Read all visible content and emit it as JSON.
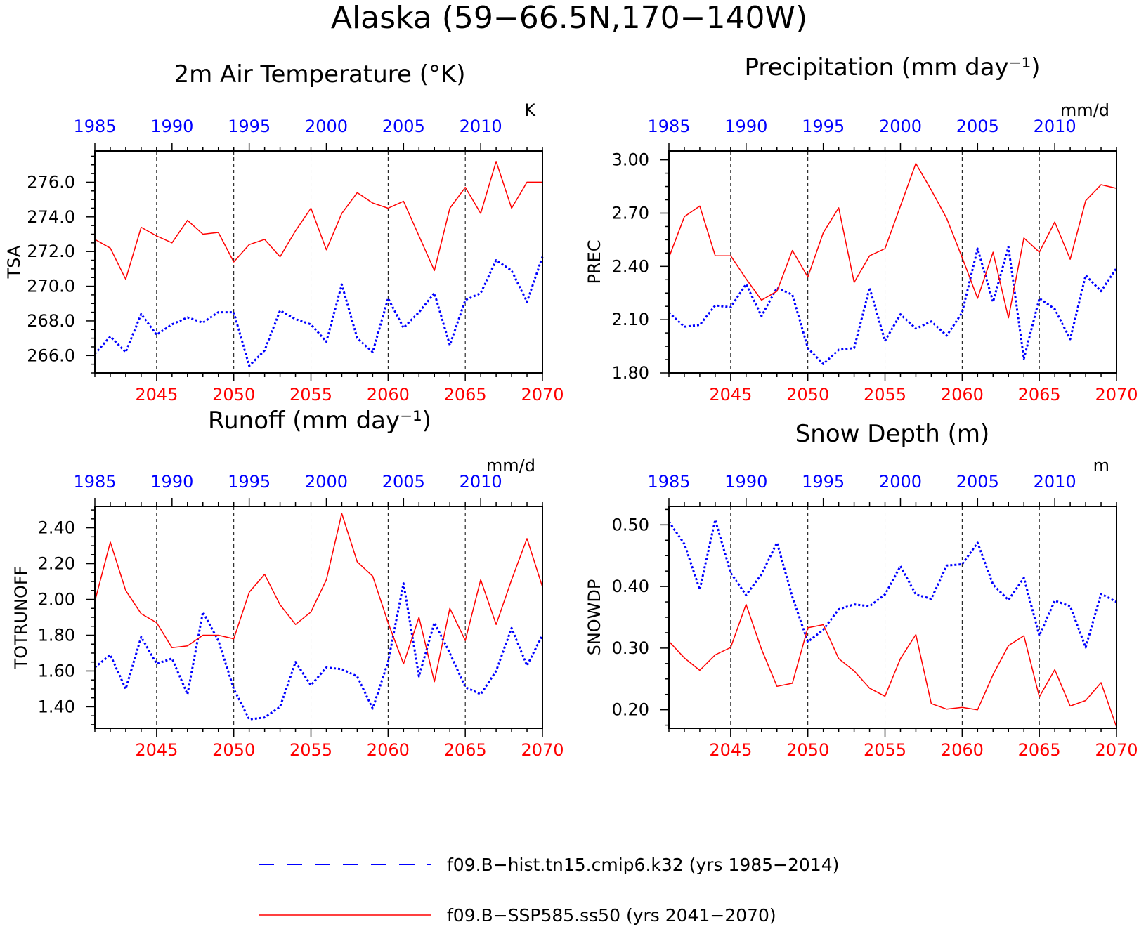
{
  "figure_title": "Alaska (59−66.5N,170−140W)",
  "colors": {
    "hist": "#0000ff",
    "ssp": "#ff0000",
    "frame": "#000000",
    "grid": "#000000"
  },
  "legend": {
    "hist_label": "f09.B−hist.tn15.cmip6.k32 (yrs 1985−2014)",
    "ssp_label": "f09.B−SSP585.ss50 (yrs 2041−2070)"
  },
  "chart_data": [
    {
      "type": "line",
      "title": "2m Air Temperature (°K)",
      "ylabel": "TSA",
      "units": "K",
      "x_bottom": {
        "range": [
          2041,
          2070
        ],
        "ticks": [
          2045,
          2050,
          2055,
          2060,
          2065,
          2070
        ],
        "labels": [
          "2045",
          "2050",
          "2055",
          "2060",
          "2065",
          "2070"
        ]
      },
      "x_top": {
        "range": [
          1985,
          2014
        ],
        "ticks": [
          1985,
          1990,
          1995,
          2000,
          2005,
          2010
        ],
        "labels": [
          "1985",
          "1990",
          "1995",
          "2000",
          "2005",
          "2010"
        ]
      },
      "ylim": [
        265.0,
        277.8
      ],
      "yticks": [
        266.0,
        268.0,
        270.0,
        272.0,
        274.0,
        276.0
      ],
      "ytick_labels": [
        "266.0",
        "268.0",
        "270.0",
        "272.0",
        "274.0",
        "276.0"
      ],
      "grid": "vertical dashed at 2045, 2050, 2055, 2060, 2065",
      "series": [
        {
          "key": "hist",
          "style": "dotted",
          "axis": "top",
          "x": [
            1985,
            1986,
            1987,
            1988,
            1989,
            1990,
            1991,
            1992,
            1993,
            1994,
            1995,
            1996,
            1997,
            1998,
            1999,
            2000,
            2001,
            2002,
            2003,
            2004,
            2005,
            2006,
            2007,
            2008,
            2009,
            2010,
            2011,
            2012,
            2013,
            2014
          ],
          "values": [
            266.1,
            267.1,
            266.2,
            268.4,
            267.2,
            267.8,
            268.2,
            267.9,
            268.5,
            268.5,
            265.4,
            266.3,
            268.6,
            268.1,
            267.8,
            266.8,
            270.1,
            267.0,
            266.2,
            269.3,
            267.6,
            268.5,
            269.6,
            266.6,
            269.2,
            269.6,
            271.5,
            270.9,
            269.1,
            271.7
          ]
        },
        {
          "key": "ssp",
          "style": "solid",
          "axis": "bottom",
          "x": [
            2041,
            2042,
            2043,
            2044,
            2045,
            2046,
            2047,
            2048,
            2049,
            2050,
            2051,
            2052,
            2053,
            2054,
            2055,
            2056,
            2057,
            2058,
            2059,
            2060,
            2061,
            2062,
            2063,
            2064,
            2065,
            2066,
            2067,
            2068,
            2069,
            2070
          ],
          "values": [
            272.7,
            272.2,
            270.4,
            273.4,
            272.9,
            272.5,
            273.8,
            273.0,
            273.1,
            271.4,
            272.4,
            272.7,
            271.7,
            273.2,
            274.5,
            272.1,
            274.2,
            275.4,
            274.8,
            274.5,
            274.9,
            272.9,
            270.9,
            274.5,
            275.7,
            274.2,
            277.2,
            274.5,
            276.0,
            276.0
          ]
        }
      ]
    },
    {
      "type": "line",
      "title": "Precipitation (mm day⁻¹)",
      "ylabel": "PREC",
      "units": "mm/d",
      "x_bottom": {
        "range": [
          2041,
          2070
        ],
        "ticks": [
          2045,
          2050,
          2055,
          2060,
          2065,
          2070
        ],
        "labels": [
          "2045",
          "2050",
          "2055",
          "2060",
          "2065",
          "2070"
        ]
      },
      "x_top": {
        "range": [
          1985,
          2014
        ],
        "ticks": [
          1985,
          1990,
          1995,
          2000,
          2005,
          2010
        ],
        "labels": [
          "1985",
          "1990",
          "1995",
          "2000",
          "2005",
          "2010"
        ]
      },
      "ylim": [
        1.8,
        3.05
      ],
      "yticks": [
        1.8,
        2.1,
        2.4,
        2.7,
        3.0
      ],
      "ytick_labels": [
        "1.80",
        "2.10",
        "2.40",
        "2.70",
        "3.00"
      ],
      "grid": "vertical dashed at 2045, 2050, 2055, 2060, 2065",
      "series": [
        {
          "key": "hist",
          "style": "dotted",
          "axis": "top",
          "x": [
            1985,
            1986,
            1987,
            1988,
            1989,
            1990,
            1991,
            1992,
            1993,
            1994,
            1995,
            1996,
            1997,
            1998,
            1999,
            2000,
            2001,
            2002,
            2003,
            2004,
            2005,
            2006,
            2007,
            2008,
            2009,
            2010,
            2011,
            2012,
            2013,
            2014
          ],
          "values": [
            2.14,
            2.06,
            2.07,
            2.18,
            2.17,
            2.3,
            2.12,
            2.28,
            2.24,
            1.94,
            1.85,
            1.93,
            1.94,
            2.28,
            1.98,
            2.13,
            2.05,
            2.09,
            2.01,
            2.14,
            2.5,
            2.2,
            2.51,
            1.88,
            2.22,
            2.16,
            1.99,
            2.35,
            2.26,
            2.39
          ]
        },
        {
          "key": "ssp",
          "style": "solid",
          "axis": "bottom",
          "x": [
            2041,
            2042,
            2043,
            2044,
            2045,
            2046,
            2047,
            2048,
            2049,
            2050,
            2051,
            2052,
            2053,
            2054,
            2055,
            2056,
            2057,
            2058,
            2059,
            2060,
            2061,
            2062,
            2063,
            2064,
            2065,
            2066,
            2067,
            2068,
            2069,
            2070
          ],
          "values": [
            2.45,
            2.68,
            2.74,
            2.46,
            2.46,
            2.33,
            2.21,
            2.26,
            2.49,
            2.34,
            2.59,
            2.73,
            2.31,
            2.46,
            2.5,
            2.74,
            2.98,
            2.83,
            2.67,
            2.45,
            2.22,
            2.48,
            2.11,
            2.56,
            2.48,
            2.65,
            2.44,
            2.77,
            2.86,
            2.84
          ]
        }
      ]
    },
    {
      "type": "line",
      "title": "Runoff (mm day⁻¹)",
      "ylabel": "TOTRUNOFF",
      "units": "mm/d",
      "x_bottom": {
        "range": [
          2041,
          2070
        ],
        "ticks": [
          2045,
          2050,
          2055,
          2060,
          2065,
          2070
        ],
        "labels": [
          "2045",
          "2050",
          "2055",
          "2060",
          "2065",
          "2070"
        ]
      },
      "x_top": {
        "range": [
          1985,
          2014
        ],
        "ticks": [
          1985,
          1990,
          1995,
          2000,
          2005,
          2010
        ],
        "labels": [
          "1985",
          "1990",
          "1995",
          "2000",
          "2005",
          "2010"
        ]
      },
      "ylim": [
        1.28,
        2.52
      ],
      "yticks": [
        1.4,
        1.6,
        1.8,
        2.0,
        2.2,
        2.4
      ],
      "ytick_labels": [
        "1.40",
        "1.60",
        "1.80",
        "2.00",
        "2.20",
        "2.40"
      ],
      "grid": "vertical dashed at 2045, 2050, 2055, 2060, 2065",
      "series": [
        {
          "key": "hist",
          "style": "dotted",
          "axis": "top",
          "x": [
            1985,
            1986,
            1987,
            1988,
            1989,
            1990,
            1991,
            1992,
            1993,
            1994,
            1995,
            1996,
            1997,
            1998,
            1999,
            2000,
            2001,
            2002,
            2003,
            2004,
            2005,
            2006,
            2007,
            2008,
            2009,
            2010,
            2011,
            2012,
            2013,
            2014
          ],
          "values": [
            1.62,
            1.69,
            1.5,
            1.79,
            1.64,
            1.67,
            1.47,
            1.93,
            1.77,
            1.5,
            1.33,
            1.34,
            1.4,
            1.65,
            1.52,
            1.62,
            1.61,
            1.57,
            1.39,
            1.65,
            2.09,
            1.57,
            1.87,
            1.7,
            1.51,
            1.47,
            1.6,
            1.84,
            1.63,
            1.8
          ]
        },
        {
          "key": "ssp",
          "style": "solid",
          "axis": "bottom",
          "x": [
            2041,
            2042,
            2043,
            2044,
            2045,
            2046,
            2047,
            2048,
            2049,
            2050,
            2051,
            2052,
            2053,
            2054,
            2055,
            2056,
            2057,
            2058,
            2059,
            2060,
            2061,
            2062,
            2063,
            2064,
            2065,
            2066,
            2067,
            2068,
            2069,
            2070
          ],
          "values": [
            1.99,
            2.32,
            2.05,
            1.92,
            1.87,
            1.73,
            1.74,
            1.8,
            1.8,
            1.78,
            2.04,
            2.14,
            1.97,
            1.86,
            1.93,
            2.11,
            2.48,
            2.21,
            2.13,
            1.87,
            1.64,
            1.9,
            1.54,
            1.95,
            1.77,
            2.11,
            1.86,
            2.11,
            2.34,
            2.07
          ]
        }
      ]
    },
    {
      "type": "line",
      "title": "Snow Depth (m)",
      "ylabel": "SNOWDP",
      "units": "m",
      "x_bottom": {
        "range": [
          2041,
          2070
        ],
        "ticks": [
          2045,
          2050,
          2055,
          2060,
          2065,
          2070
        ],
        "labels": [
          "2045",
          "2050",
          "2055",
          "2060",
          "2065",
          "2070"
        ]
      },
      "x_top": {
        "range": [
          1985,
          2014
        ],
        "ticks": [
          1985,
          1990,
          1995,
          2000,
          2005,
          2010
        ],
        "labels": [
          "1985",
          "1990",
          "1995",
          "2000",
          "2005",
          "2010"
        ]
      },
      "ylim": [
        0.17,
        0.53
      ],
      "yticks": [
        0.2,
        0.3,
        0.4,
        0.5
      ],
      "ytick_labels": [
        "0.20",
        "0.30",
        "0.40",
        "0.50"
      ],
      "grid": "vertical dashed at 2045, 2050, 2055, 2060, 2065",
      "series": [
        {
          "key": "hist",
          "style": "dotted",
          "axis": "top",
          "x": [
            1985,
            1986,
            1987,
            1988,
            1989,
            1990,
            1991,
            1992,
            1993,
            1994,
            1995,
            1996,
            1997,
            1998,
            1999,
            2000,
            2001,
            2002,
            2003,
            2004,
            2005,
            2006,
            2007,
            2008,
            2009,
            2010,
            2011,
            2012,
            2013,
            2014
          ],
          "values": [
            0.505,
            0.469,
            0.395,
            0.508,
            0.422,
            0.386,
            0.42,
            0.471,
            0.383,
            0.31,
            0.33,
            0.363,
            0.371,
            0.368,
            0.387,
            0.433,
            0.387,
            0.38,
            0.434,
            0.436,
            0.471,
            0.403,
            0.378,
            0.414,
            0.32,
            0.377,
            0.368,
            0.301,
            0.388,
            0.375
          ]
        },
        {
          "key": "ssp",
          "style": "solid",
          "axis": "bottom",
          "x": [
            2041,
            2042,
            2043,
            2044,
            2045,
            2046,
            2047,
            2048,
            2049,
            2050,
            2051,
            2052,
            2053,
            2054,
            2055,
            2056,
            2057,
            2058,
            2059,
            2060,
            2061,
            2062,
            2063,
            2064,
            2065,
            2066,
            2067,
            2068,
            2069,
            2070
          ],
          "values": [
            0.311,
            0.284,
            0.264,
            0.289,
            0.301,
            0.371,
            0.298,
            0.238,
            0.243,
            0.333,
            0.338,
            0.283,
            0.263,
            0.235,
            0.222,
            0.283,
            0.322,
            0.21,
            0.201,
            0.204,
            0.2,
            0.257,
            0.304,
            0.32,
            0.221,
            0.265,
            0.206,
            0.215,
            0.244,
            0.172
          ]
        }
      ]
    }
  ]
}
